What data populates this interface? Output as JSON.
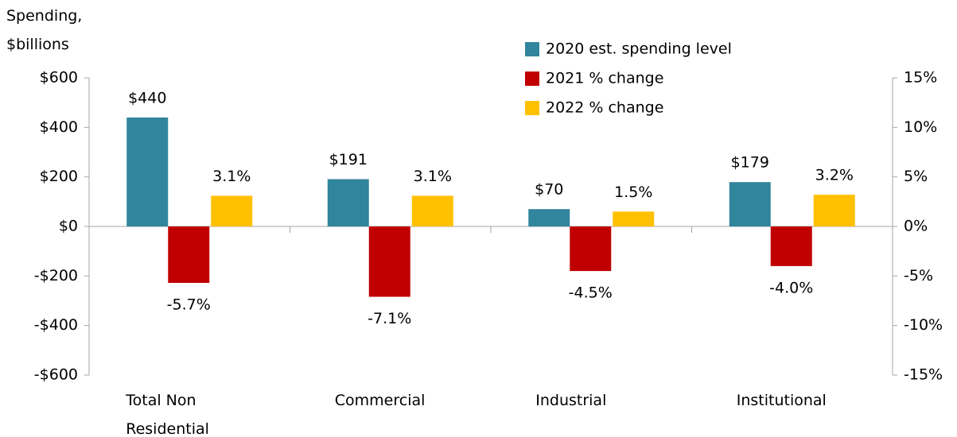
{
  "chart_data": {
    "type": "bar",
    "y_label": "Spending, $billions",
    "categories": [
      "Total Non Residential",
      "Commercial",
      "Industrial",
      "Institutional"
    ],
    "series": [
      {
        "name": "2020 est. spending level",
        "color": "#31859c",
        "axis": "y",
        "values": [
          440,
          191,
          70,
          179
        ],
        "value_labels": [
          "$440",
          "$191",
          "$70",
          "$179"
        ]
      },
      {
        "name": "2021 % change",
        "color": "#c00000",
        "axis": "y2",
        "values": [
          -5.7,
          -7.1,
          -4.5,
          -4.0
        ],
        "value_labels": [
          "-5.7%",
          "-7.1%",
          "-4.5%",
          "-4.0%"
        ]
      },
      {
        "name": "2022 % change",
        "color": "#ffc000",
        "axis": "y2",
        "values": [
          3.1,
          3.1,
          1.5,
          3.2
        ],
        "value_labels": [
          "3.1%",
          "3.1%",
          "1.5%",
          "3.2%"
        ]
      }
    ],
    "ylim": [
      -600,
      600
    ],
    "yticks": [
      {
        "value": -600,
        "label": "-$600"
      },
      {
        "value": -400,
        "label": "-$400"
      },
      {
        "value": -200,
        "label": "-$200"
      },
      {
        "value": 0,
        "label": "$0"
      },
      {
        "value": 200,
        "label": "$200"
      },
      {
        "value": 400,
        "label": "$400"
      },
      {
        "value": 600,
        "label": "$600"
      }
    ],
    "y2lim": [
      -15,
      15
    ],
    "y2ticks": [
      {
        "value": -15,
        "label": "-15%"
      },
      {
        "value": -10,
        "label": "-10%"
      },
      {
        "value": -5,
        "label": "-5%"
      },
      {
        "value": 0,
        "label": "0%"
      },
      {
        "value": 5,
        "label": "5%"
      },
      {
        "value": 10,
        "label": "10%"
      },
      {
        "value": 15,
        "label": "15%"
      }
    ],
    "legend": "top-right"
  }
}
